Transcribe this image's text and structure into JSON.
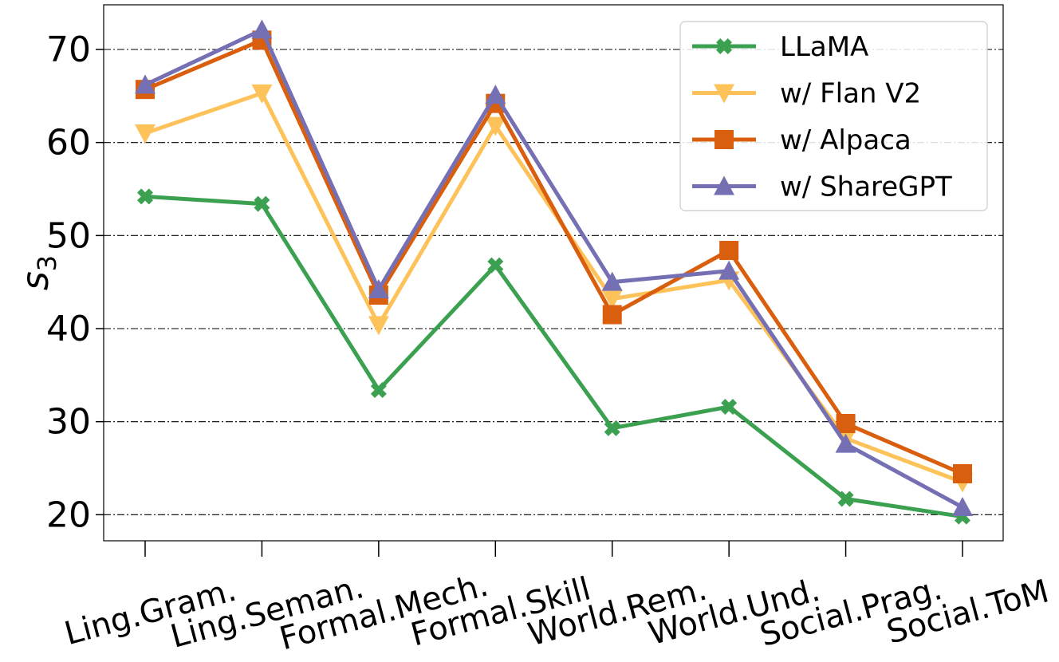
{
  "chart_data": {
    "type": "line",
    "title": "",
    "xlabel": "",
    "ylabel": "s",
    "ylabel_subscript": "3",
    "ylim": [
      17.2,
      74.8
    ],
    "yticks": [
      20,
      30,
      40,
      50,
      60,
      70
    ],
    "grid": "horizontal dash-dot",
    "legend_position": "top-right",
    "categories": [
      "Ling.Gram.",
      "Ling.Seman.",
      "Formal.Mech.",
      "Formal.Skill",
      "World.Rem.",
      "World.Und.",
      "Social.Prag.",
      "Social.ToM"
    ],
    "series": [
      {
        "name": "LLaMA",
        "color": "#3ba150",
        "marker": "x",
        "values": [
          54.2,
          53.4,
          33.4,
          46.8,
          29.3,
          31.6,
          21.7,
          19.8
        ]
      },
      {
        "name": "w/ Flan V2",
        "color": "#fdc35a",
        "marker": "triangle-down",
        "values": [
          61.0,
          65.3,
          40.4,
          61.8,
          43.2,
          45.2,
          28.2,
          23.5
        ]
      },
      {
        "name": "w/ Alpaca",
        "color": "#d95f0e",
        "marker": "square",
        "values": [
          65.7,
          71.0,
          43.6,
          64.2,
          41.5,
          48.4,
          29.8,
          24.4
        ]
      },
      {
        "name": "w/ ShareGPT",
        "color": "#7570b3",
        "marker": "triangle-up",
        "values": [
          66.2,
          72.1,
          44.2,
          65.1,
          45.0,
          46.2,
          27.6,
          20.8
        ]
      }
    ]
  }
}
